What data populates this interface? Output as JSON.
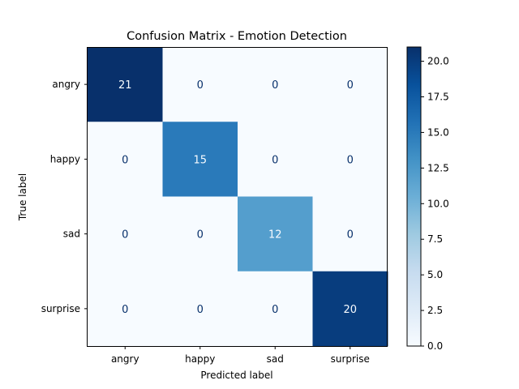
{
  "chart_data": {
    "type": "heatmap",
    "title": "Confusion Matrix - Emotion Detection",
    "xlabel": "Predicted label",
    "ylabel": "True label",
    "x_categories": [
      "angry",
      "happy",
      "sad",
      "surprise"
    ],
    "y_categories": [
      "angry",
      "happy",
      "sad",
      "surprise"
    ],
    "matrix": [
      [
        21,
        0,
        0,
        0
      ],
      [
        0,
        15,
        0,
        0
      ],
      [
        0,
        0,
        12,
        0
      ],
      [
        0,
        0,
        0,
        20
      ]
    ],
    "colormap": "Blues",
    "colorbar": {
      "range": [
        0,
        21
      ],
      "ticks": [
        0.0,
        2.5,
        5.0,
        7.5,
        10.0,
        12.5,
        15.0,
        17.5,
        20.0
      ],
      "tick_labels": [
        "0.0",
        "2.5",
        "5.0",
        "7.5",
        "10.0",
        "12.5",
        "15.0",
        "17.5",
        "20.0"
      ]
    },
    "grid": false
  }
}
